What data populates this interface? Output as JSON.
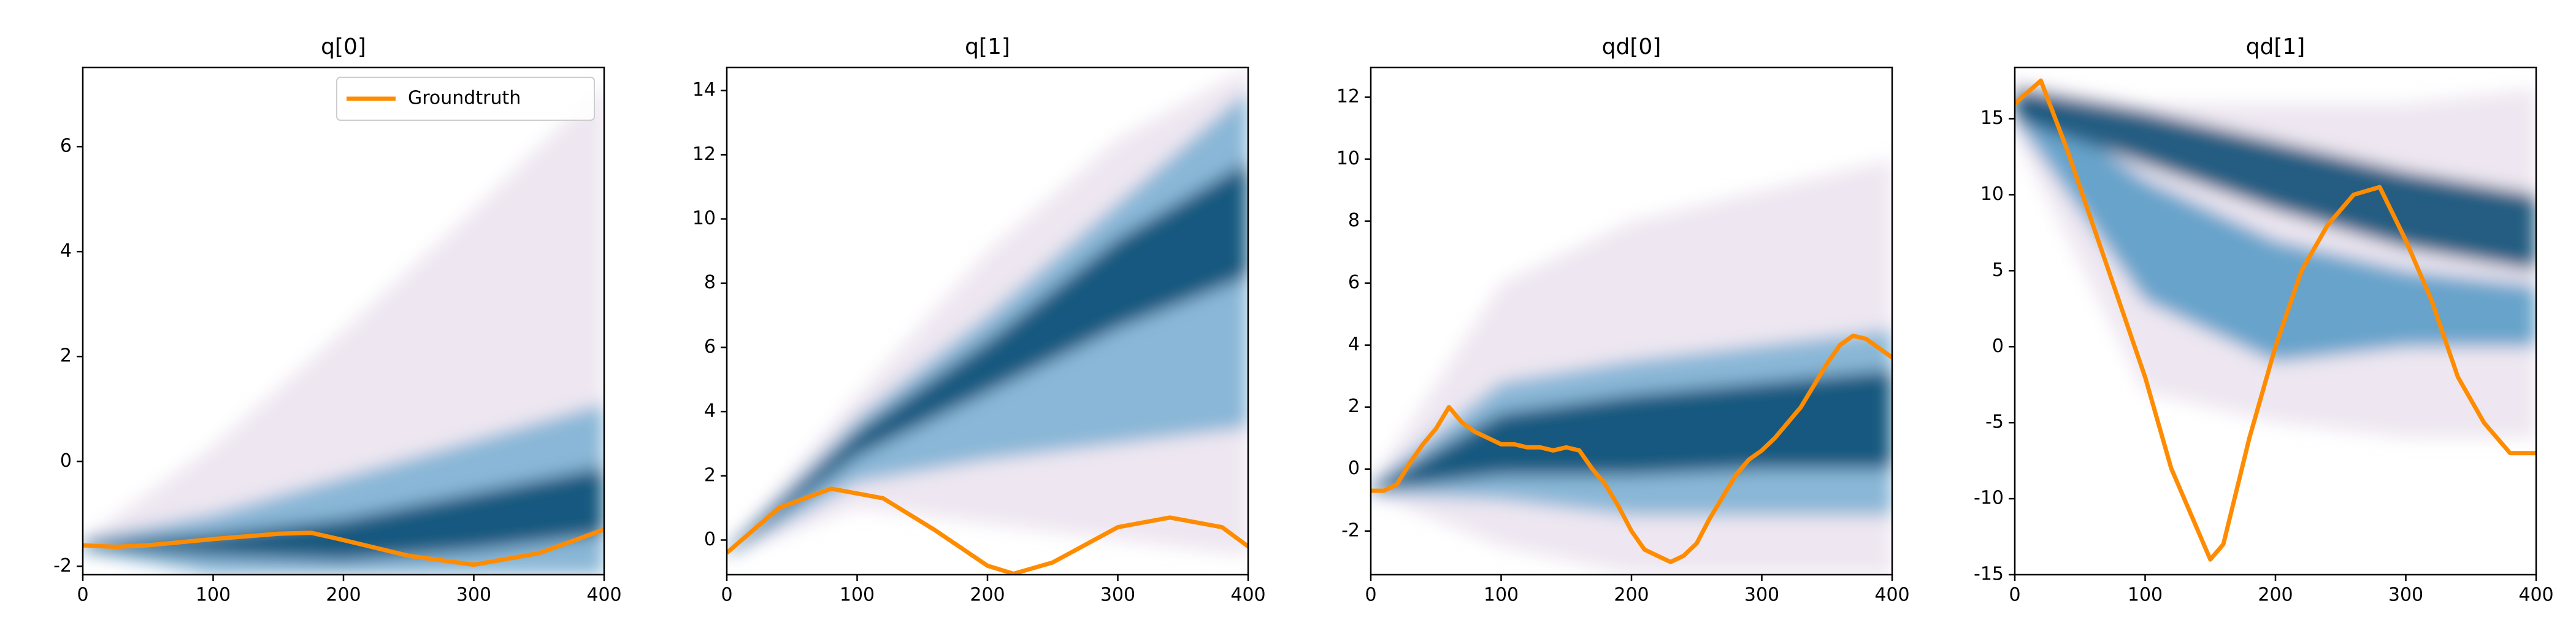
{
  "chart_data": [
    {
      "type": "line",
      "title": "q[0]",
      "xlim": [
        0,
        400
      ],
      "xticks": [
        0,
        100,
        200,
        300,
        400
      ],
      "ylim": [
        -2.16,
        7.51
      ],
      "yticks": [
        -2,
        0,
        2,
        4,
        6
      ],
      "legend": "upper right",
      "density": {
        "x": [
          0,
          100,
          200,
          300,
          400
        ],
        "bands": [
          {
            "color": "#ece4f0",
            "low": [
              -1.7,
              -2.16,
              -2.16,
              -2.16,
              -2.16
            ],
            "high": [
              -1.5,
              0.3,
              2.5,
              4.8,
              7.2
            ]
          },
          {
            "color": "#7fb3d5",
            "low": [
              -1.7,
              -2.16,
              -2.16,
              -2.16,
              -2.16
            ],
            "high": [
              -1.5,
              -1.0,
              -0.3,
              0.4,
              1.1
            ]
          },
          {
            "color": "#0b4f75",
            "low": [
              -1.65,
              -1.8,
              -1.9,
              -1.7,
              -1.4
            ],
            "high": [
              -1.55,
              -1.4,
              -1.1,
              -0.6,
              -0.1
            ]
          }
        ]
      },
      "series": [
        {
          "name": "Groundtruth",
          "color": "#ff8c00",
          "x": [
            0,
            25,
            50,
            100,
            150,
            175,
            200,
            250,
            300,
            350,
            400
          ],
          "values": [
            -1.6,
            -1.63,
            -1.6,
            -1.48,
            -1.38,
            -1.36,
            -1.5,
            -1.8,
            -1.97,
            -1.75,
            -1.3
          ]
        }
      ]
    },
    {
      "type": "line",
      "title": "q[1]",
      "xlim": [
        0,
        400
      ],
      "xticks": [
        0,
        100,
        200,
        300,
        400
      ],
      "ylim": [
        -1.08,
        14.72
      ],
      "yticks": [
        0,
        2,
        4,
        6,
        8,
        10,
        12,
        14
      ],
      "density": {
        "x": [
          0,
          100,
          200,
          300,
          400
        ],
        "bands": [
          {
            "color": "#ece4f0",
            "low": [
              -0.5,
              1.0,
              0.5,
              0.0,
              -0.5
            ],
            "high": [
              -0.3,
              4.5,
              9.0,
              12.5,
              14.72
            ]
          },
          {
            "color": "#7fb3d5",
            "low": [
              -0.5,
              1.8,
              2.5,
              3.0,
              3.5
            ],
            "high": [
              -0.3,
              3.8,
              7.0,
              10.5,
              14.0
            ]
          },
          {
            "color": "#0b4f75",
            "low": [
              -0.45,
              2.6,
              4.6,
              6.6,
              8.2
            ],
            "high": [
              -0.35,
              3.4,
              6.2,
              9.4,
              11.8
            ]
          }
        ]
      },
      "series": [
        {
          "color": "#ff8c00",
          "x": [
            0,
            40,
            80,
            120,
            160,
            200,
            220,
            250,
            300,
            340,
            380,
            400
          ],
          "values": [
            -0.4,
            1.0,
            1.6,
            1.3,
            0.3,
            -0.8,
            -1.05,
            -0.7,
            0.4,
            0.7,
            0.4,
            -0.2
          ]
        }
      ]
    },
    {
      "type": "line",
      "title": "qd[0]",
      "xlim": [
        0,
        400
      ],
      "xticks": [
        0,
        100,
        200,
        300,
        400
      ],
      "ylim": [
        -3.41,
        12.96
      ],
      "yticks": [
        -2,
        0,
        2,
        4,
        6,
        8,
        10,
        12
      ],
      "density": {
        "x": [
          0,
          100,
          200,
          300,
          400
        ],
        "bands": [
          {
            "color": "#ece4f0",
            "low": [
              -0.8,
              -2.5,
              -3.41,
              -3.41,
              -3.41
            ],
            "high": [
              -0.5,
              6.0,
              8.0,
              9.0,
              10.0
            ]
          },
          {
            "color": "#7fb3d5",
            "low": [
              -0.8,
              -1.0,
              -1.5,
              -1.5,
              -1.5
            ],
            "high": [
              -0.5,
              2.8,
              3.5,
              4.0,
              4.5
            ]
          },
          {
            "color": "#0b4f75",
            "low": [
              -0.7,
              -0.2,
              -0.2,
              0.0,
              0.0
            ],
            "high": [
              -0.6,
              1.8,
              2.4,
              2.8,
              3.2
            ]
          }
        ]
      },
      "series": [
        {
          "color": "#ff8c00",
          "x": [
            0,
            10,
            20,
            30,
            40,
            50,
            60,
            70,
            80,
            90,
            100,
            110,
            120,
            130,
            140,
            150,
            160,
            170,
            180,
            190,
            200,
            210,
            220,
            230,
            240,
            250,
            260,
            270,
            280,
            290,
            300,
            310,
            320,
            330,
            340,
            350,
            360,
            370,
            380,
            390,
            400
          ],
          "values": [
            -0.7,
            -0.7,
            -0.5,
            0.2,
            0.8,
            1.3,
            2.0,
            1.5,
            1.2,
            1.0,
            0.8,
            0.8,
            0.7,
            0.7,
            0.6,
            0.7,
            0.6,
            0,
            -0.5,
            -1.2,
            -2.0,
            -2.6,
            -2.8,
            -3.0,
            -2.8,
            -2.4,
            -1.6,
            -0.9,
            -0.2,
            0.3,
            0.6,
            1.0,
            1.5,
            2.0,
            2.7,
            3.4,
            4.0,
            4.3,
            4.2,
            3.9,
            3.6
          ]
        }
      ]
    },
    {
      "type": "line",
      "title": "qd[1]",
      "xlim": [
        0,
        400
      ],
      "xticks": [
        0,
        100,
        200,
        300,
        400
      ],
      "ylim": [
        -15,
        18.37
      ],
      "yticks": [
        -15,
        -10,
        -5,
        0,
        5,
        10,
        15
      ],
      "density": {
        "x": [
          0,
          100,
          200,
          300,
          400
        ],
        "bands": [
          {
            "color": "#ece4f0",
            "low": [
              14,
              -3,
              -5,
              -6,
              -6
            ],
            "high": [
              17.5,
              16,
              16,
              16,
              17
            ]
          },
          {
            "color": "#5a9cc8",
            "low": [
              15,
              3,
              -1,
              0,
              0
            ],
            "high": [
              17,
              11,
              7,
              5,
              4
            ]
          },
          {
            "color": "#0b4f75",
            "low": [
              15,
              12,
              9,
              6.5,
              5
            ],
            "high": [
              17,
              15.5,
              13.5,
              11.5,
              10
            ]
          }
        ]
      },
      "series": [
        {
          "color": "#ff8c00",
          "x": [
            0,
            20,
            40,
            60,
            80,
            100,
            120,
            140,
            150,
            160,
            180,
            200,
            220,
            240,
            260,
            280,
            300,
            320,
            340,
            360,
            380,
            400
          ],
          "values": [
            16,
            17.5,
            13,
            8,
            3,
            -2,
            -8,
            -12,
            -14,
            -13,
            -6,
            0,
            5,
            8,
            10,
            10.5,
            7,
            3,
            -2,
            -5,
            -7,
            -7
          ]
        }
      ]
    }
  ]
}
